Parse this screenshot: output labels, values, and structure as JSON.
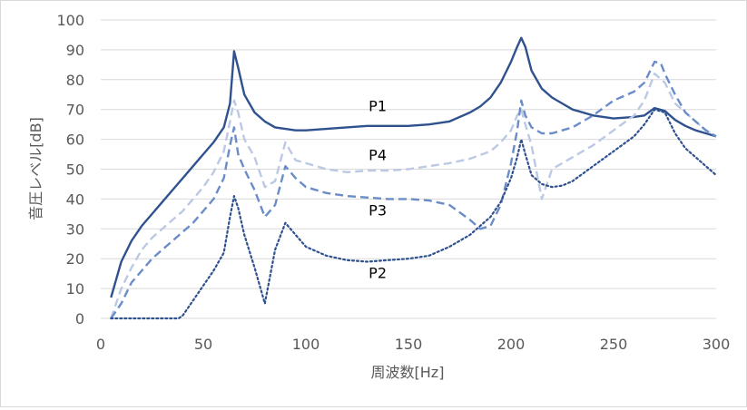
{
  "chart_data": {
    "type": "line",
    "title": "",
    "xlabel": "周波数[Hz]",
    "ylabel": "音圧レベル[dB]",
    "xlim": [
      0,
      300
    ],
    "ylim": [
      0,
      100
    ],
    "x_ticks": [
      0,
      50,
      100,
      150,
      200,
      250,
      300
    ],
    "y_ticks": [
      0,
      10,
      20,
      30,
      40,
      50,
      60,
      70,
      80,
      90,
      100
    ],
    "grid": "horizontal",
    "legend": "none",
    "colors": {
      "axis": "#d9d9d9",
      "grid": "#d9d9d9",
      "tick_text": "#595959",
      "label_text": "#595959",
      "P1": "#2f528f",
      "P2": "#2f528f",
      "P3": "#6a8cc8",
      "P4": "#bcc9e4"
    },
    "series": [
      {
        "name": "P1",
        "style": "solid",
        "x": [
          5,
          10,
          15,
          20,
          25,
          30,
          35,
          40,
          45,
          50,
          55,
          60,
          63,
          65,
          67,
          70,
          75,
          80,
          85,
          90,
          95,
          100,
          110,
          120,
          130,
          140,
          150,
          160,
          170,
          180,
          185,
          190,
          195,
          200,
          203,
          205,
          207,
          210,
          215,
          220,
          225,
          230,
          240,
          250,
          260,
          265,
          270,
          275,
          280,
          285,
          290,
          295,
          300
        ],
        "y": [
          7,
          19,
          26,
          31,
          35,
          39,
          43,
          47,
          51,
          55,
          59,
          64,
          72,
          89.5,
          84,
          75,
          69,
          66,
          64,
          63.5,
          63,
          63,
          63.5,
          64,
          64.5,
          64.5,
          64.5,
          65,
          66,
          69,
          71,
          74,
          79,
          86,
          91,
          94,
          91,
          83,
          77,
          74,
          72,
          70,
          68,
          67,
          67.5,
          68,
          70.5,
          69.5,
          66.5,
          64.5,
          63,
          62,
          61
        ]
      },
      {
        "name": "P4",
        "style": "dash",
        "x": [
          5,
          10,
          15,
          20,
          25,
          30,
          35,
          40,
          45,
          50,
          55,
          60,
          63,
          65,
          67,
          70,
          75,
          80,
          85,
          90,
          95,
          100,
          110,
          120,
          130,
          140,
          150,
          160,
          170,
          180,
          190,
          195,
          200,
          203,
          205,
          207,
          210,
          215,
          220,
          225,
          230,
          240,
          250,
          260,
          265,
          270,
          275,
          280,
          285,
          290,
          295,
          300
        ],
        "y": [
          0,
          10,
          17,
          23,
          27,
          30,
          33,
          36,
          40,
          44,
          49,
          56,
          66,
          73,
          69,
          60,
          54,
          44,
          46,
          59,
          53,
          52,
          50,
          49,
          49.5,
          49.5,
          50,
          51,
          52,
          53.5,
          56,
          59,
          63,
          68,
          70,
          65,
          58,
          40,
          50,
          52,
          54,
          58,
          63,
          68,
          73,
          82,
          79,
          72,
          69,
          66,
          63,
          61
        ]
      },
      {
        "name": "P3",
        "style": "dash",
        "x": [
          5,
          10,
          15,
          20,
          25,
          30,
          35,
          40,
          45,
          50,
          55,
          60,
          63,
          65,
          67,
          70,
          75,
          80,
          85,
          90,
          95,
          100,
          110,
          120,
          130,
          140,
          150,
          160,
          170,
          180,
          185,
          190,
          195,
          200,
          203,
          205,
          207,
          210,
          215,
          220,
          225,
          230,
          240,
          250,
          260,
          265,
          270,
          273,
          275,
          280,
          285,
          290,
          295,
          300
        ],
        "y": [
          0,
          5,
          12,
          16,
          20,
          23,
          26,
          29,
          32,
          36,
          40,
          47,
          58,
          64,
          55,
          50,
          43,
          34,
          38,
          51,
          47,
          44,
          42,
          41,
          40.5,
          40,
          40,
          39.5,
          38,
          33,
          30,
          31,
          38,
          52,
          63,
          73,
          68,
          64,
          62,
          62,
          63,
          64,
          68,
          73,
          76,
          79,
          86,
          85.5,
          82,
          75,
          69,
          66,
          63,
          61
        ]
      },
      {
        "name": "P2",
        "style": "dot",
        "x": [
          5,
          10,
          15,
          20,
          25,
          30,
          35,
          38,
          40,
          45,
          50,
          55,
          60,
          63,
          65,
          67,
          70,
          75,
          80,
          85,
          90,
          95,
          100,
          110,
          120,
          130,
          140,
          150,
          160,
          170,
          180,
          190,
          195,
          200,
          203,
          205,
          207,
          210,
          215,
          220,
          225,
          230,
          240,
          250,
          260,
          265,
          270,
          275,
          280,
          285,
          290,
          295,
          300
        ],
        "y": [
          0,
          0,
          0,
          0,
          0,
          0,
          0,
          0,
          1,
          6,
          11,
          16,
          22,
          34,
          41,
          37,
          28,
          17,
          5,
          23,
          32,
          28,
          24,
          21,
          19.5,
          19,
          19.5,
          20,
          21,
          24,
          28,
          34,
          39,
          47,
          54,
          60,
          55,
          48,
          45,
          44,
          44.5,
          46,
          51,
          56,
          61,
          65,
          70,
          69,
          62,
          57,
          54,
          51,
          48
        ]
      }
    ],
    "annotations": [
      {
        "text": "P1",
        "x": 135,
        "y": 69.5
      },
      {
        "text": "P4",
        "x": 135,
        "y": 53
      },
      {
        "text": "P3",
        "x": 135,
        "y": 34.5
      },
      {
        "text": "P2",
        "x": 135,
        "y": 13.5
      }
    ]
  }
}
